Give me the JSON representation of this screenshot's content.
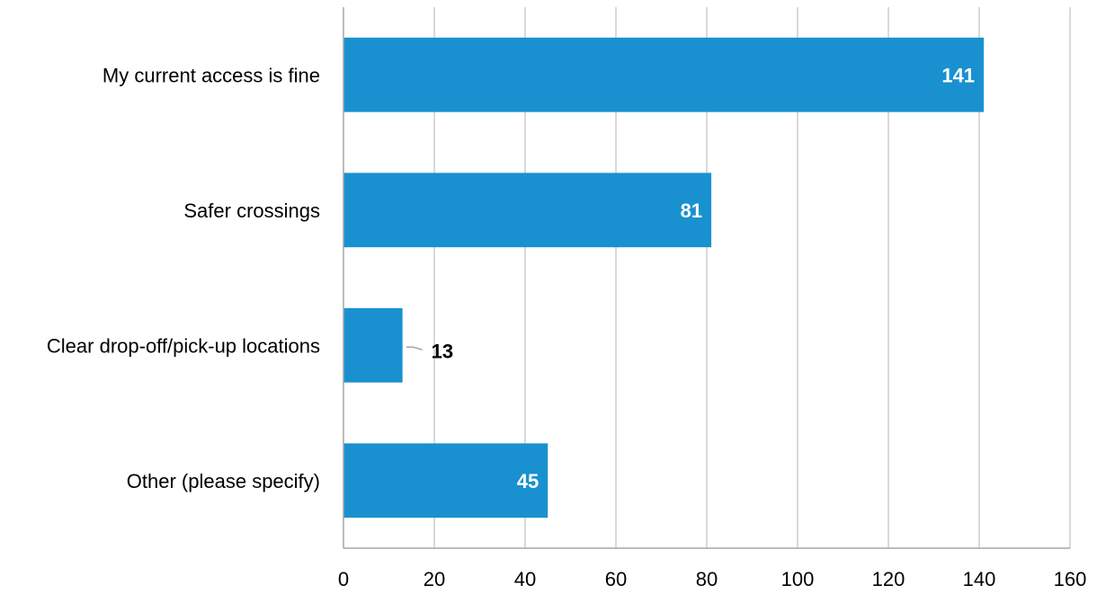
{
  "chart_data": {
    "type": "bar",
    "orientation": "horizontal",
    "title": "",
    "xlabel": "",
    "ylabel": "",
    "categories": [
      "My current access is fine",
      "Safer crossings",
      "Clear drop-off/pick-up locations",
      "Other (please specify)"
    ],
    "values": [
      141,
      81,
      13,
      45
    ],
    "data_labels": [
      "141",
      "81",
      "13",
      "45"
    ],
    "xlim": [
      0,
      160
    ],
    "x_ticks": [
      0,
      20,
      40,
      60,
      80,
      100,
      120,
      140,
      160
    ],
    "x_tick_labels": [
      "0",
      "20",
      "40",
      "60",
      "80",
      "100",
      "120",
      "140",
      "160"
    ],
    "grid": "vertical",
    "legend": "none",
    "bar_color": "#1991d0",
    "grid_color": "#d9d9d9",
    "axis_color": "#a6a6a6"
  }
}
